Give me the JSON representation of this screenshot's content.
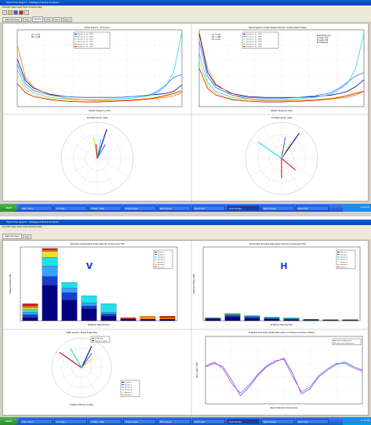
{
  "screen_top": {
    "window_title": "Fault Flow Report - Intelligent Noise Analyzer",
    "menu": "File  Edit  View  Insert  Tools  Window  Help",
    "tabs": [
      "Waterfall Panel",
      "Polar",
      "Spectra",
      "Orbit",
      "Trend",
      "Report"
    ],
    "active_tab": 2,
    "plots": {
      "spectrum_left_title": "Radial Spectra - 1X Cursors",
      "spectrum_right_title": "Radial Spectra of Peak Shaped Periodic Content (Peak Shape)",
      "spectrum_xlabel": "Radial Frequency (rad)",
      "polar_left_title": "1X Phase Vector (deg)",
      "polar_right_title": "1X Phase Vector (deg)",
      "legend_left": [
        "Sensor 1 - 1x - 95%",
        "Sensor 2 - 1x - 95%",
        "Sensor 3 - 1x - 95%",
        "Sensor 4 - 1x - 95%",
        "Sensor 5 - 1x - 95%",
        "Sensor 6 - 1x - 95%"
      ],
      "note_left": "1X = 1.00\nSD = 0.88",
      "note_right_a": "1X = 1.00\nSD = 0.88\n3X = 1.63",
      "note_right_b": "Peak Shape avg\n1X peak 1.00\nBL peak 2.68\nBL Threshold"
    },
    "taskbar": {
      "start": "start",
      "items": [
        "Inbox - Micro...",
        "Cif, Analy...",
        "Untitled - Notes",
        "Noise Analyzer",
        "NDE Analyzer",
        "Spectra Plot",
        "Fault Flow Rep...",
        "Noise Analyzer",
        "Report Files"
      ],
      "active_item": 6,
      "clock": "11:04 AM"
    },
    "series_colors": [
      "#0000aa",
      "#3a6cff",
      "#22d8e8",
      "#e8d820",
      "#ff7a00",
      "#c81818",
      "#202020"
    ]
  },
  "screen_bottom": {
    "window_title": "Fault Flow Report - Intelligent Noise Analyzer",
    "menu": "File  Edit  View  Insert  Tools  Window  Help",
    "tabs": [
      "Waterfall Panel",
      "Polar"
    ],
    "active_tab": 0,
    "bar_v_title": "Vertically Oriented Peak Power (Periodic Component) TDO",
    "bar_h_title": "Horizontally Oriented Peak Power (Periodic Component) TDO",
    "bar_v_label": "V",
    "bar_h_label": "H",
    "bar_xlabel": "Sideband Peak Number",
    "bar_ylabel": "Sideband Power (dB)",
    "polar_title": "1X/BL Vectors - Phase angle Polar",
    "polar_xlabel": "Sideband Phase vs (deg)",
    "polar_legend": [
      "1X BL pkg",
      "H peak vectors"
    ],
    "polar_sensor_legend": [
      "Sensor 1",
      "Sensor 2",
      "Sensor 3",
      "Sensor 4",
      "Sensor 5",
      "Sensor 6"
    ],
    "line_title": "Sideband Periodicity (DOM) Attenuation and Phase Correction (TDO%)",
    "line_xlabel": "Peak of Periodic Components",
    "line_ylabel": "Attenuation (dB)",
    "line_legend": [
      "Vertical (Measured)",
      "Horizontal (Estimated)"
    ],
    "taskbar": {
      "start": "start",
      "items": [
        "Inbox - Micro...",
        "Cif, Analy...",
        "Untitled - Notes",
        "Noise Analyzer",
        "NDE Analyzer",
        "Spectra Plot",
        "Fault Flow Rep...",
        "Noise Analyzer",
        "Report Files"
      ],
      "active_item": 6,
      "clock": "11:10 AM"
    },
    "bar_colors": [
      "#000080",
      "#1a3cd0",
      "#3aa0ff",
      "#22e0e8",
      "#e8e030",
      "#ff8800",
      "#cc2020"
    ]
  },
  "chart_data": [
    {
      "type": "line",
      "title": "Radial Spectra - 1X Cursors",
      "xlabel": "Radial Frequency (rad)",
      "x": [
        0,
        0.05,
        0.1,
        0.2,
        0.3,
        0.4,
        0.5,
        0.6,
        0.7,
        0.8,
        0.85,
        0.9,
        0.95,
        1.0
      ],
      "ylim": [
        0,
        1
      ],
      "series": [
        {
          "name": "Sensor 1 - 1x - 95%",
          "values": [
            0.62,
            0.34,
            0.24,
            0.16,
            0.13,
            0.12,
            0.12,
            0.12,
            0.13,
            0.15,
            0.16,
            0.17,
            0.2,
            0.28
          ]
        },
        {
          "name": "Sensor 2 - 1x - 95%",
          "values": [
            0.55,
            0.3,
            0.21,
            0.15,
            0.13,
            0.12,
            0.12,
            0.12,
            0.13,
            0.15,
            0.2,
            0.28,
            0.38,
            0.42
          ]
        },
        {
          "name": "Sensor 3 - 1x - 95%",
          "values": [
            0.48,
            0.26,
            0.18,
            0.12,
            0.1,
            0.09,
            0.09,
            0.1,
            0.11,
            0.14,
            0.18,
            0.26,
            0.45,
            0.98
          ]
        },
        {
          "name": "Sensor 4 - 1x - 95%",
          "values": [
            0.4,
            0.22,
            0.15,
            0.1,
            0.08,
            0.07,
            0.07,
            0.08,
            0.09,
            0.11,
            0.13,
            0.15,
            0.18,
            0.22
          ]
        },
        {
          "name": "Sensor 5 - 1x - 95%",
          "values": [
            0.8,
            0.38,
            0.25,
            0.15,
            0.11,
            0.09,
            0.08,
            0.08,
            0.09,
            0.1,
            0.11,
            0.12,
            0.14,
            0.18
          ]
        },
        {
          "name": "Sensor 6 - 1x - 95%",
          "values": [
            0.3,
            0.18,
            0.13,
            0.09,
            0.07,
            0.06,
            0.06,
            0.07,
            0.08,
            0.1,
            0.12,
            0.14,
            0.17,
            0.2
          ]
        }
      ]
    },
    {
      "type": "line",
      "title": "Radial Spectra of Peak Shaped Periodic Content (Peak Shape)",
      "xlabel": "Radial Frequency (rad)",
      "x": [
        0,
        0.05,
        0.1,
        0.2,
        0.3,
        0.4,
        0.5,
        0.6,
        0.7,
        0.8,
        0.85,
        0.9,
        0.95,
        1.0
      ],
      "ylim": [
        0,
        1
      ],
      "series": [
        {
          "name": "Sensor 1",
          "values": [
            0.95,
            0.45,
            0.28,
            0.17,
            0.13,
            0.12,
            0.12,
            0.12,
            0.13,
            0.15,
            0.17,
            0.2,
            0.26,
            0.35
          ]
        },
        {
          "name": "Sensor 2",
          "values": [
            0.85,
            0.4,
            0.25,
            0.15,
            0.12,
            0.11,
            0.11,
            0.12,
            0.14,
            0.18,
            0.24,
            0.32,
            0.4,
            0.44
          ]
        },
        {
          "name": "Sensor 3",
          "values": [
            0.7,
            0.32,
            0.2,
            0.12,
            0.1,
            0.09,
            0.09,
            0.1,
            0.12,
            0.16,
            0.22,
            0.3,
            0.5,
            0.96
          ]
        },
        {
          "name": "Sensor 4",
          "values": [
            0.6,
            0.28,
            0.17,
            0.1,
            0.08,
            0.07,
            0.07,
            0.08,
            0.09,
            0.11,
            0.13,
            0.15,
            0.18,
            0.2
          ]
        },
        {
          "name": "Sensor 5",
          "values": [
            0.98,
            0.5,
            0.3,
            0.15,
            0.1,
            0.08,
            0.08,
            0.08,
            0.09,
            0.1,
            0.11,
            0.12,
            0.15,
            0.2
          ]
        },
        {
          "name": "Sensor 6",
          "values": [
            0.5,
            0.24,
            0.15,
            0.09,
            0.07,
            0.06,
            0.06,
            0.07,
            0.08,
            0.1,
            0.12,
            0.14,
            0.17,
            0.2
          ]
        }
      ]
    },
    {
      "type": "polar",
      "title": "1X Phase Vector (deg)",
      "vectors": [
        {
          "angle": 72,
          "magnitude": 0.85,
          "color": "#0000aa"
        },
        {
          "angle": 80,
          "magnitude": 0.55,
          "color": "#22d8e8"
        },
        {
          "angle": 100,
          "magnitude": 0.6,
          "color": "#e8d820"
        },
        {
          "angle": 95,
          "magnitude": 0.4,
          "color": "#c81818"
        },
        {
          "angle": 60,
          "magnitude": 0.45,
          "color": "#3a6cff"
        }
      ]
    },
    {
      "type": "polar",
      "title": "1X Phase Vector (deg)",
      "vectors": [
        {
          "angle": 55,
          "magnitude": 0.85,
          "color": "#0000aa"
        },
        {
          "angle": 145,
          "magnitude": 0.8,
          "color": "#22d8e8"
        },
        {
          "angle": 80,
          "magnitude": 0.6,
          "color": "#3a6cff"
        },
        {
          "angle": 270,
          "magnitude": 0.55,
          "color": "#c81818"
        },
        {
          "angle": 320,
          "magnitude": 0.5,
          "color": "#c81818"
        },
        {
          "angle": 60,
          "magnitude": 0.45,
          "color": "#e8d820"
        }
      ]
    },
    {
      "type": "bar",
      "stacked": true,
      "title": "Vertically Oriented Peak Power (Periodic Component) TDO",
      "xlabel": "Sideband Peak Number",
      "ylabel": "Sideband Power (dB)",
      "categories": [
        "1",
        "2",
        "3",
        "4",
        "5",
        "6",
        "7",
        "8"
      ],
      "ylim": [
        0,
        100
      ],
      "series": [
        {
          "name": "Sensor 1",
          "values": [
            4,
            48,
            28,
            16,
            6,
            2,
            2,
            2
          ]
        },
        {
          "name": "Sensor 2",
          "values": [
            4,
            12,
            10,
            4,
            3,
            0,
            0,
            0
          ]
        },
        {
          "name": "Sensor 3",
          "values": [
            3,
            14,
            6,
            4,
            2,
            0,
            0,
            0
          ]
        },
        {
          "name": "Sensor 4",
          "values": [
            4,
            12,
            8,
            10,
            12,
            0,
            0,
            0
          ]
        },
        {
          "name": "Sensor 5",
          "values": [
            3,
            8,
            0,
            0,
            0,
            0,
            0,
            0
          ]
        },
        {
          "name": "Sensor 6",
          "values": [
            2,
            2,
            0,
            0,
            0,
            0,
            4,
            2
          ]
        },
        {
          "name": "Sensor 7",
          "values": [
            3,
            2,
            0,
            0,
            0,
            2,
            0,
            2
          ]
        }
      ]
    },
    {
      "type": "bar",
      "stacked": true,
      "title": "Horizontally Oriented Peak Power (Periodic Component) TDO",
      "xlabel": "Sideband Peak Number",
      "ylabel": "Sideband Power (dB)",
      "categories": [
        "1",
        "2",
        "3",
        "4",
        "5",
        "6",
        "7",
        "8"
      ],
      "ylim": [
        0,
        100
      ],
      "series": [
        {
          "name": "Sensor 1",
          "values": [
            2,
            5,
            3,
            2,
            1,
            0.5,
            0.5,
            0.5
          ]
        },
        {
          "name": "Sensor 2",
          "values": [
            1,
            2,
            2,
            1,
            1,
            0,
            0,
            0
          ]
        },
        {
          "name": "Sensor 3",
          "values": [
            0.5,
            1,
            1,
            1,
            1,
            0,
            0,
            0
          ]
        },
        {
          "name": "Sensor 4",
          "values": [
            0.5,
            1,
            1,
            1,
            1,
            0.5,
            0,
            0
          ]
        },
        {
          "name": "Sensor 5",
          "values": [
            0,
            1,
            0,
            0,
            0,
            0,
            0,
            0
          ]
        },
        {
          "name": "Sensor 6",
          "values": [
            0,
            0,
            0,
            0,
            0,
            0.5,
            0.5,
            0.5
          ]
        },
        {
          "name": "Sensor 7",
          "values": [
            0,
            0,
            0,
            0,
            0,
            0.5,
            0.5,
            0.5
          ]
        }
      ]
    },
    {
      "type": "polar",
      "title": "1X/BL Vectors - Phase angle Polar",
      "vectors": [
        {
          "angle": 145,
          "magnitude": 0.9,
          "color": "#c81818"
        },
        {
          "angle": 120,
          "magnitude": 0.75,
          "color": "#22d8e8"
        },
        {
          "angle": 65,
          "magnitude": 0.8,
          "color": "#0000aa"
        },
        {
          "angle": 55,
          "magnitude": 0.6,
          "color": "#3a6cff"
        },
        {
          "angle": 40,
          "magnitude": 0.5,
          "color": "#e8d820"
        }
      ]
    },
    {
      "type": "line",
      "title": "Sideband Periodicity (DOM) Attenuation and Phase Correction (TDO%)",
      "xlabel": "Peak of Periodic Components",
      "ylabel": "Attenuation (dB)",
      "x": [
        0,
        20,
        40,
        60,
        80,
        100,
        120,
        140,
        160,
        180,
        200,
        220,
        240,
        260,
        280,
        300,
        320,
        340,
        360
      ],
      "ylim": [
        0,
        1
      ],
      "series": [
        {
          "name": "Vertical (Measured)",
          "values": [
            0.55,
            0.6,
            0.55,
            0.35,
            0.12,
            0.25,
            0.42,
            0.55,
            0.62,
            0.68,
            0.45,
            0.15,
            0.22,
            0.4,
            0.5,
            0.58,
            0.62,
            0.55,
            0.5
          ]
        },
        {
          "name": "Horizontal (Estimated)",
          "values": [
            0.56,
            0.62,
            0.52,
            0.3,
            0.16,
            0.28,
            0.44,
            0.56,
            0.64,
            0.66,
            0.4,
            0.18,
            0.25,
            0.42,
            0.52,
            0.6,
            0.6,
            0.53,
            0.48
          ]
        }
      ]
    }
  ]
}
